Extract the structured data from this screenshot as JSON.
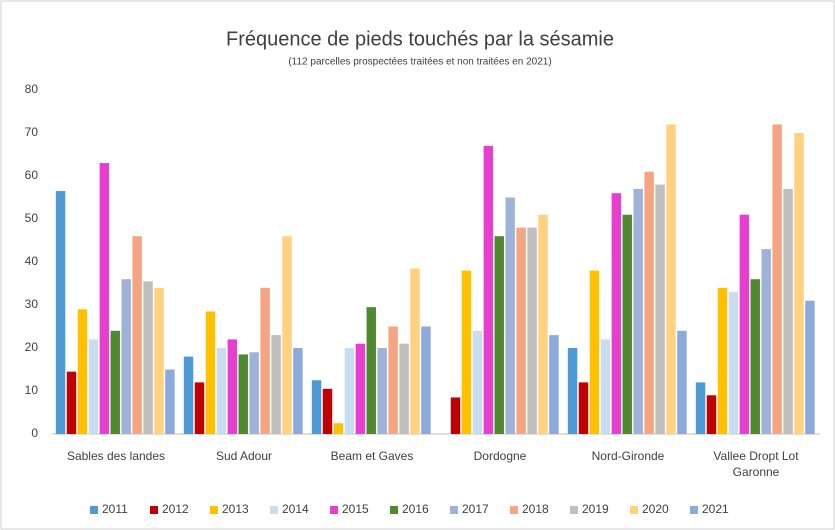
{
  "chart_data": {
    "type": "bar",
    "title": "Fréquence de pieds touchés par la sésamie",
    "subtitle": "(112 parcelles prospectées traitées et non traitées en 2021)",
    "categories": [
      "Sables des landes",
      "Sud Adour",
      "Beam et Gaves",
      "Dordogne",
      "Nord-Gironde",
      "Vallee Dropt Lot Garonne"
    ],
    "series": [
      {
        "name": "2011",
        "color": "#4e9ad4",
        "values": [
          56.5,
          18,
          12.5,
          null,
          20,
          12
        ]
      },
      {
        "name": "2012",
        "color": "#c00000",
        "values": [
          14.5,
          12,
          10.5,
          8.5,
          12,
          9
        ]
      },
      {
        "name": "2013",
        "color": "#ffc000",
        "values": [
          29,
          28.5,
          2.5,
          38,
          38,
          34
        ]
      },
      {
        "name": "2014",
        "color": "#c9dcf0",
        "values": [
          22,
          20,
          20,
          24,
          22,
          33
        ]
      },
      {
        "name": "2015",
        "color": "#e83ed0",
        "values": [
          63,
          22,
          21,
          67,
          56,
          51
        ]
      },
      {
        "name": "2016",
        "color": "#4f8a2e",
        "values": [
          24,
          18.5,
          29.5,
          46,
          51,
          36
        ]
      },
      {
        "name": "2017",
        "color": "#9db4d8",
        "values": [
          36,
          19,
          20,
          55,
          57,
          43
        ]
      },
      {
        "name": "2018",
        "color": "#f4a582",
        "values": [
          46,
          34,
          25,
          48,
          61,
          72
        ]
      },
      {
        "name": "2019",
        "color": "#bfbfbf",
        "values": [
          35.5,
          23,
          21,
          48,
          58,
          57
        ]
      },
      {
        "name": "2020",
        "color": "#ffd27f",
        "values": [
          34,
          46,
          38.5,
          51,
          72,
          70
        ]
      },
      {
        "name": "2021",
        "color": "#8ea9db",
        "values": [
          15,
          20,
          25,
          23,
          24,
          31
        ]
      }
    ],
    "ylim": [
      0,
      80
    ],
    "yticks": [
      0,
      10,
      20,
      30,
      40,
      50,
      60,
      70,
      80
    ],
    "grid": false,
    "legend": "bottom"
  }
}
